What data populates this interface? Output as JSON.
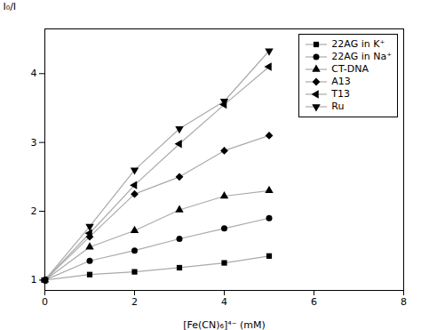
{
  "chart_data": {
    "type": "line",
    "xlabel": "[Fe(CN)₆]⁴⁻ (mM)",
    "ylabel": "I₀/I",
    "color": "#aaaaaa",
    "series": [
      {
        "name": "22AG in K⁺",
        "marker": "square",
        "x": [
          0,
          1,
          2,
          3,
          4,
          5
        ],
        "values": [
          1.0,
          1.08,
          1.12,
          1.18,
          1.25,
          1.35
        ]
      },
      {
        "name": "22AG in Na⁺",
        "marker": "circle",
        "x": [
          0,
          1,
          2,
          3,
          4,
          5
        ],
        "values": [
          1.0,
          1.28,
          1.43,
          1.6,
          1.75,
          1.9
        ]
      },
      {
        "name": "CT-DNA",
        "marker": "triangle-up",
        "x": [
          0,
          1,
          2,
          3,
          4,
          5
        ],
        "values": [
          1.0,
          1.48,
          1.72,
          2.02,
          2.22,
          2.3
        ]
      },
      {
        "name": "A13",
        "marker": "diamond",
        "x": [
          0,
          1,
          2,
          3,
          4,
          5
        ],
        "values": [
          1.0,
          1.63,
          2.25,
          2.5,
          2.88,
          3.1
        ]
      },
      {
        "name": "T13",
        "marker": "triangle-left",
        "x": [
          0,
          1,
          2,
          3,
          4,
          5
        ],
        "values": [
          1.0,
          1.68,
          2.38,
          2.98,
          3.55,
          4.1
        ]
      },
      {
        "name": "Ru",
        "marker": "triangle-down",
        "x": [
          0,
          1,
          2,
          3,
          4,
          5
        ],
        "values": [
          1.0,
          1.78,
          2.6,
          3.2,
          3.6,
          4.33
        ]
      }
    ],
    "xlim": [
      0,
      8
    ],
    "xticks": [
      0,
      2,
      4,
      6,
      8
    ],
    "ylim": [
      0.85,
      4.65
    ],
    "yticks": [
      1,
      2,
      3,
      4
    ],
    "grid": false,
    "legend": "upper right"
  }
}
